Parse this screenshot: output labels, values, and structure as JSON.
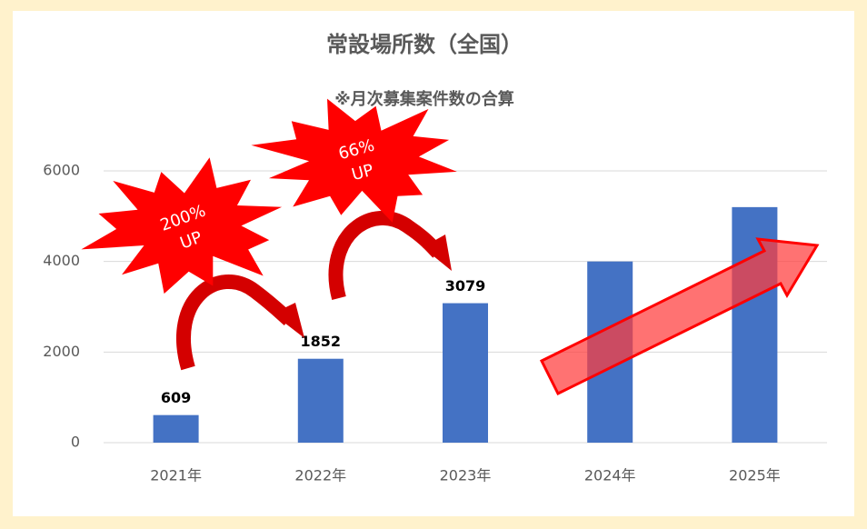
{
  "chart_data": {
    "type": "bar",
    "title": "常設場所数（全国）",
    "subtitle": "※月次募集案件数の合算",
    "categories": [
      "2021年",
      "2022年",
      "2023年",
      "2024年",
      "2025年"
    ],
    "values": [
      609,
      1852,
      3079,
      4000,
      5200
    ],
    "value_labels": [
      "609",
      "1852",
      "3079",
      null,
      null
    ],
    "color": "#4472c4",
    "ylim": [
      0,
      6000
    ],
    "yticks": [
      0,
      2000,
      4000,
      6000
    ],
    "grid": true,
    "annotations": [
      {
        "lines": [
          "200%",
          "UP"
        ]
      },
      {
        "lines": [
          "66%",
          "UP"
        ]
      }
    ]
  }
}
